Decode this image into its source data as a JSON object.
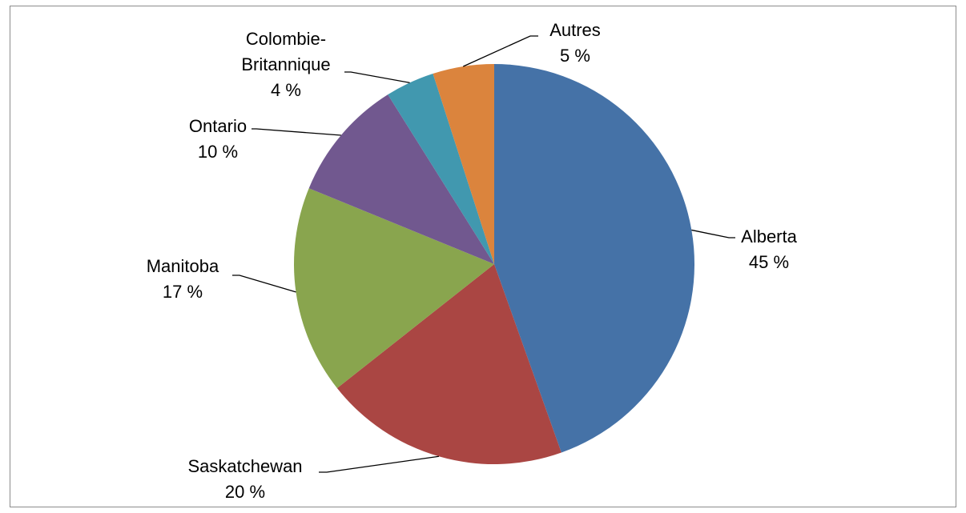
{
  "chart_data": {
    "type": "pie",
    "title": "",
    "slices": [
      {
        "label": "Alberta",
        "value": 45,
        "pct_text": "45 %",
        "color": "#4572A7"
      },
      {
        "label": "Saskatchewan",
        "value": 20,
        "pct_text": "20 %",
        "color": "#AA4643"
      },
      {
        "label": "Manitoba",
        "value": 17,
        "pct_text": "17 %",
        "color": "#89A54E"
      },
      {
        "label": "Ontario",
        "value": 10,
        "pct_text": "10 %",
        "color": "#71588F"
      },
      {
        "label": "Colombie-Britannique",
        "label_lines": [
          "Colombie-",
          "Britannique"
        ],
        "value": 4,
        "pct_text": "4 %",
        "color": "#4198AF"
      },
      {
        "label": "Autres",
        "value": 5,
        "pct_text": "5 %",
        "color": "#DB843D"
      }
    ],
    "start_angle": "12 o'clock",
    "direction": "clockwise",
    "legend": "none",
    "data_labels": "outside with leader lines"
  }
}
